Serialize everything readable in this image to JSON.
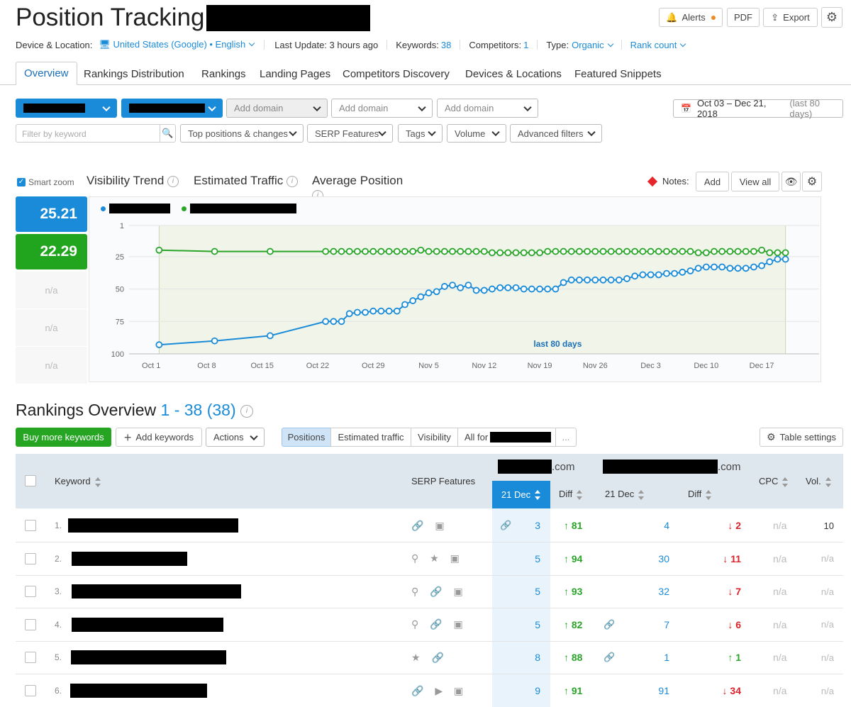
{
  "header": {
    "title": "Position Tracking:",
    "alerts_label": "Alerts",
    "pdf_label": "PDF",
    "export_label": "Export"
  },
  "info_bar": {
    "device_label": "Device & Location:",
    "device_value": "United States (Google) • English",
    "last_update": "Last Update: 3 hours ago",
    "keywords_label": "Keywords:",
    "keywords_value": "38",
    "competitors_label": "Competitors:",
    "competitors_value": "1",
    "type_label": "Type:",
    "type_value": "Organic",
    "rank_count": "Rank count"
  },
  "tabs": [
    {
      "label": "Overview"
    },
    {
      "label": "Rankings Distribution"
    },
    {
      "label": "Rankings"
    },
    {
      "label": "Landing Pages"
    },
    {
      "label": "Competitors Discovery"
    },
    {
      "label": "Devices & Locations"
    },
    {
      "label": "Featured Snippets"
    }
  ],
  "filters": {
    "add_domain": "Add domain",
    "date_range": "Oct 03 – Dec 21, 2018",
    "date_note": "(last 80 days)",
    "keyword_placeholder": "Filter by keyword",
    "top_positions": "Top positions & changes",
    "serp_features": "SERP Features",
    "tags": "Tags",
    "volume": "Volume",
    "advanced": "Advanced filters"
  },
  "chart_tabs": {
    "smart_zoom": "Smart zoom",
    "visibility": "Visibility Trend",
    "traffic": "Estimated Traffic",
    "avg_position": "Average Position",
    "notes_label": "Notes:",
    "add": "Add",
    "view_all": "View all"
  },
  "side_values": {
    "a": "25.21",
    "b": "22.29",
    "na": "n/a"
  },
  "colors": {
    "series_blue": "#1a8bd8",
    "series_green": "#2aa52a",
    "accent": "#1a8bd8"
  },
  "chart_data": {
    "type": "line",
    "x_ticks": [
      "Oct 1",
      "Oct 8",
      "Oct 15",
      "Oct 22",
      "Oct 29",
      "Nov 5",
      "Nov 12",
      "Nov 19",
      "Nov 26",
      "Dec 3",
      "Dec 10",
      "Dec 17"
    ],
    "y_ticks": [
      "1",
      "25",
      "50",
      "75",
      "100"
    ],
    "ylim": [
      1,
      100
    ],
    "y_reversed": true,
    "annotation": "last 80 days",
    "series": [
      {
        "color": "#1a8bd8",
        "points": [
          [
            2,
            93
          ],
          [
            9,
            90
          ],
          [
            16,
            86
          ],
          [
            23,
            75
          ],
          [
            24,
            75
          ],
          [
            25,
            75
          ],
          [
            26,
            69
          ],
          [
            27,
            68
          ],
          [
            28,
            68
          ],
          [
            29,
            67
          ],
          [
            30,
            67
          ],
          [
            31,
            67
          ],
          [
            32,
            67
          ],
          [
            33,
            62
          ],
          [
            34,
            59
          ],
          [
            35,
            56
          ],
          [
            36,
            53
          ],
          [
            37,
            52
          ],
          [
            38,
            48
          ],
          [
            39,
            47
          ],
          [
            40,
            49
          ],
          [
            41,
            47
          ],
          [
            42,
            51
          ],
          [
            43,
            51
          ],
          [
            44,
            50
          ],
          [
            45,
            49
          ],
          [
            46,
            49
          ],
          [
            47,
            49
          ],
          [
            48,
            50
          ],
          [
            49,
            50
          ],
          [
            50,
            50
          ],
          [
            51,
            50
          ],
          [
            52,
            50
          ],
          [
            53,
            45
          ],
          [
            54,
            43
          ],
          [
            55,
            43
          ],
          [
            56,
            43
          ],
          [
            57,
            43
          ],
          [
            58,
            43
          ],
          [
            59,
            43
          ],
          [
            60,
            43
          ],
          [
            61,
            42
          ],
          [
            62,
            40
          ],
          [
            63,
            39
          ],
          [
            64,
            39
          ],
          [
            65,
            39
          ],
          [
            66,
            38
          ],
          [
            67,
            38
          ],
          [
            68,
            37
          ],
          [
            69,
            36
          ],
          [
            70,
            34
          ],
          [
            71,
            33
          ],
          [
            72,
            33
          ],
          [
            73,
            33
          ],
          [
            74,
            34
          ],
          [
            75,
            34
          ],
          [
            76,
            34
          ],
          [
            77,
            33
          ],
          [
            78,
            32
          ],
          [
            79,
            29
          ],
          [
            80,
            27
          ],
          [
            81,
            27
          ]
        ]
      },
      {
        "color": "#2aa52a",
        "points": [
          [
            2,
            20
          ],
          [
            9,
            21
          ],
          [
            16,
            21
          ],
          [
            23,
            21
          ],
          [
            24,
            21
          ],
          [
            25,
            21
          ],
          [
            26,
            21
          ],
          [
            27,
            21
          ],
          [
            28,
            21
          ],
          [
            29,
            21
          ],
          [
            30,
            21
          ],
          [
            31,
            21
          ],
          [
            32,
            21
          ],
          [
            33,
            21
          ],
          [
            34,
            21
          ],
          [
            35,
            20
          ],
          [
            36,
            21
          ],
          [
            37,
            21
          ],
          [
            38,
            21
          ],
          [
            39,
            21
          ],
          [
            40,
            21
          ],
          [
            41,
            21
          ],
          [
            42,
            21
          ],
          [
            43,
            21
          ],
          [
            44,
            22
          ],
          [
            45,
            22
          ],
          [
            46,
            22
          ],
          [
            47,
            22
          ],
          [
            48,
            22
          ],
          [
            49,
            22
          ],
          [
            50,
            22
          ],
          [
            51,
            21
          ],
          [
            52,
            21
          ],
          [
            53,
            21
          ],
          [
            54,
            21
          ],
          [
            55,
            21
          ],
          [
            56,
            21
          ],
          [
            57,
            21
          ],
          [
            58,
            21
          ],
          [
            59,
            21
          ],
          [
            60,
            21
          ],
          [
            61,
            21
          ],
          [
            62,
            21
          ],
          [
            63,
            21
          ],
          [
            64,
            21
          ],
          [
            65,
            21
          ],
          [
            66,
            21
          ],
          [
            67,
            21
          ],
          [
            68,
            21
          ],
          [
            69,
            21
          ],
          [
            70,
            22
          ],
          [
            71,
            22
          ],
          [
            72,
            21
          ],
          [
            73,
            21
          ],
          [
            74,
            21
          ],
          [
            75,
            21
          ],
          [
            76,
            21
          ],
          [
            77,
            21
          ],
          [
            78,
            20
          ],
          [
            79,
            22
          ],
          [
            80,
            22
          ],
          [
            81,
            22
          ]
        ]
      }
    ]
  },
  "rankings": {
    "title": "Rankings Overview",
    "range": "1 - 38 (38)",
    "buy_more": "Buy more keywords",
    "add_keywords": "Add keywords",
    "actions": "Actions",
    "seg_positions": "Positions",
    "seg_traffic": "Estimated traffic",
    "seg_visibility": "Visibility",
    "seg_all_for": "All for",
    "seg_more": "...",
    "table_settings": "Table settings",
    "columns": {
      "keyword": "Keyword",
      "serp": "SERP Features",
      "domain_suffix": ".com",
      "date": "21 Dec",
      "diff": "Diff",
      "cpc": "CPC",
      "vol": "Vol."
    },
    "rows": [
      {
        "num": "1.",
        "kw_w": 240,
        "kw_x": 96,
        "icons": "🔗 ▣",
        "link1": true,
        "pos1": "3",
        "diff1": "81",
        "diff1_dir": "up",
        "link2": false,
        "pos2": "4",
        "diff2": "2",
        "diff2_dir": "down",
        "cpc": "n/a",
        "vol": "10"
      },
      {
        "num": "2.",
        "kw_w": 163,
        "kw_x": 101,
        "icons": "⚲ ★ ▣",
        "link1": false,
        "pos1": "5",
        "diff1": "94",
        "diff1_dir": "up",
        "link2": false,
        "pos2": "30",
        "diff2": "11",
        "diff2_dir": "down",
        "cpc": "n/a",
        "vol": "n/a"
      },
      {
        "num": "3.",
        "kw_w": 239,
        "kw_x": 101,
        "icons": "⚲ 🔗 ▣",
        "link1": false,
        "pos1": "5",
        "diff1": "93",
        "diff1_dir": "up",
        "link2": false,
        "pos2": "32",
        "diff2": "7",
        "diff2_dir": "down",
        "cpc": "n/a",
        "vol": "n/a"
      },
      {
        "num": "4.",
        "kw_w": 214,
        "kw_x": 101,
        "icons": "⚲ 🔗 ▣",
        "link1": false,
        "pos1": "5",
        "diff1": "82",
        "diff1_dir": "up",
        "link2": true,
        "pos2": "7",
        "diff2": "6",
        "diff2_dir": "down",
        "cpc": "n/a",
        "vol": "n/a"
      },
      {
        "num": "5.",
        "kw_w": 219,
        "kw_x": 100,
        "icons": "★ 🔗",
        "link1": false,
        "pos1": "8",
        "diff1": "88",
        "diff1_dir": "up",
        "link2": true,
        "pos2": "1",
        "diff2": "1",
        "diff2_dir": "up",
        "cpc": "n/a",
        "vol": "n/a"
      },
      {
        "num": "6.",
        "kw_w": 193,
        "kw_x": 99,
        "icons": "🔗 ▶ ▣",
        "link1": false,
        "pos1": "9",
        "diff1": "91",
        "diff1_dir": "up",
        "link2": false,
        "pos2": "91",
        "diff2": "34",
        "diff2_dir": "down",
        "cpc": "n/a",
        "vol": "n/a"
      }
    ]
  }
}
